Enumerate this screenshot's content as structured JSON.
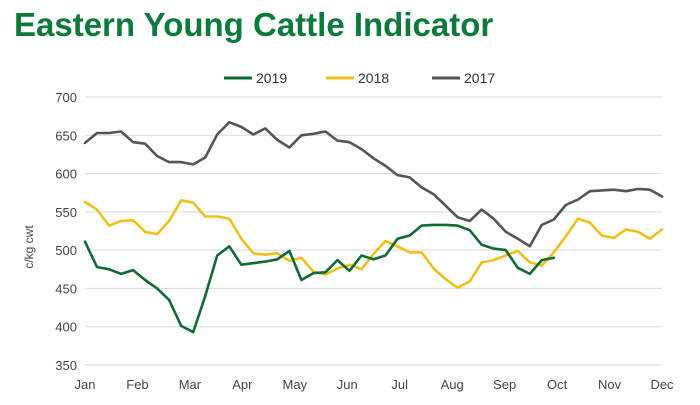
{
  "header": {
    "title": "Eastern Young Cattle Indicator"
  },
  "chart_data": {
    "type": "line",
    "title": "Eastern Young Cattle Indicator",
    "xlabel": "",
    "ylabel": "c/kg cwt",
    "ylim": [
      350,
      700
    ],
    "yticks": [
      350,
      400,
      450,
      500,
      550,
      600,
      650,
      700
    ],
    "xlim": [
      1,
      49
    ],
    "categories": [
      "Jan",
      "Feb",
      "Mar",
      "Apr",
      "May",
      "Jun",
      "Jul",
      "Aug",
      "Sep",
      "Oct",
      "Nov",
      "Dec"
    ],
    "grid": true,
    "legend": "top-center",
    "series": [
      {
        "name": "2019",
        "color": "#0e6b35",
        "x": [
          1,
          2,
          3,
          4,
          5,
          6,
          7,
          8,
          9,
          10,
          11,
          12,
          13,
          14,
          15,
          16,
          17,
          18,
          19,
          20,
          21,
          22,
          23,
          24,
          25,
          26,
          27,
          28,
          29,
          30,
          31,
          32,
          33,
          34,
          35,
          36,
          37,
          38,
          39,
          40,
          41,
          42
        ],
        "values": [
          511,
          478,
          475,
          469,
          474,
          461,
          450,
          435,
          401,
          393,
          440,
          493,
          505,
          481,
          483,
          485,
          488,
          499,
          461,
          470,
          471,
          487,
          473,
          493,
          488,
          493,
          515,
          519,
          532,
          533,
          533,
          532,
          526,
          507,
          502,
          500,
          477,
          469,
          487,
          490,
          null,
          null
        ]
      },
      {
        "name": "2018",
        "color": "#f2be1a",
        "x": [
          1,
          2,
          3,
          4,
          5,
          6,
          7,
          8,
          9,
          10,
          11,
          12,
          13,
          14,
          15,
          16,
          17,
          18,
          19,
          20,
          21,
          22,
          23,
          24,
          25,
          26,
          27,
          28,
          29,
          30,
          31,
          32,
          33,
          34,
          35,
          36,
          37,
          38,
          39,
          40,
          41,
          42,
          43,
          44,
          45,
          46,
          47,
          48,
          49
        ],
        "values": [
          563,
          553,
          532,
          538,
          539,
          524,
          521,
          538,
          565,
          562,
          544,
          544,
          541,
          515,
          496,
          494,
          496,
          486,
          490,
          472,
          468,
          476,
          481,
          475,
          495,
          512,
          505,
          497,
          497,
          476,
          462,
          451,
          459,
          484,
          487,
          493,
          499,
          484,
          480,
          497,
          518,
          541,
          536,
          519,
          516,
          527,
          524,
          515,
          527
        ]
      },
      {
        "name": "2017",
        "color": "#555555",
        "x": [
          1,
          2,
          3,
          4,
          5,
          6,
          7,
          8,
          9,
          10,
          11,
          12,
          13,
          14,
          15,
          16,
          17,
          18,
          19,
          20,
          21,
          22,
          23,
          24,
          25,
          26,
          27,
          28,
          29,
          30,
          31,
          32,
          33,
          34,
          35,
          36,
          37,
          38,
          39,
          40,
          41,
          42,
          43,
          44,
          45,
          46,
          47,
          48,
          49
        ],
        "values": [
          640,
          653,
          653,
          655,
          641,
          639,
          623,
          615,
          615,
          612,
          621,
          651,
          667,
          661,
          651,
          659,
          644,
          634,
          650,
          652,
          655,
          643,
          641,
          632,
          620,
          610,
          598,
          595,
          582,
          573,
          558,
          543,
          538,
          553,
          541,
          524,
          515,
          505,
          533,
          540,
          559,
          566,
          577,
          578,
          579,
          577,
          580,
          579,
          570
        ]
      }
    ]
  }
}
